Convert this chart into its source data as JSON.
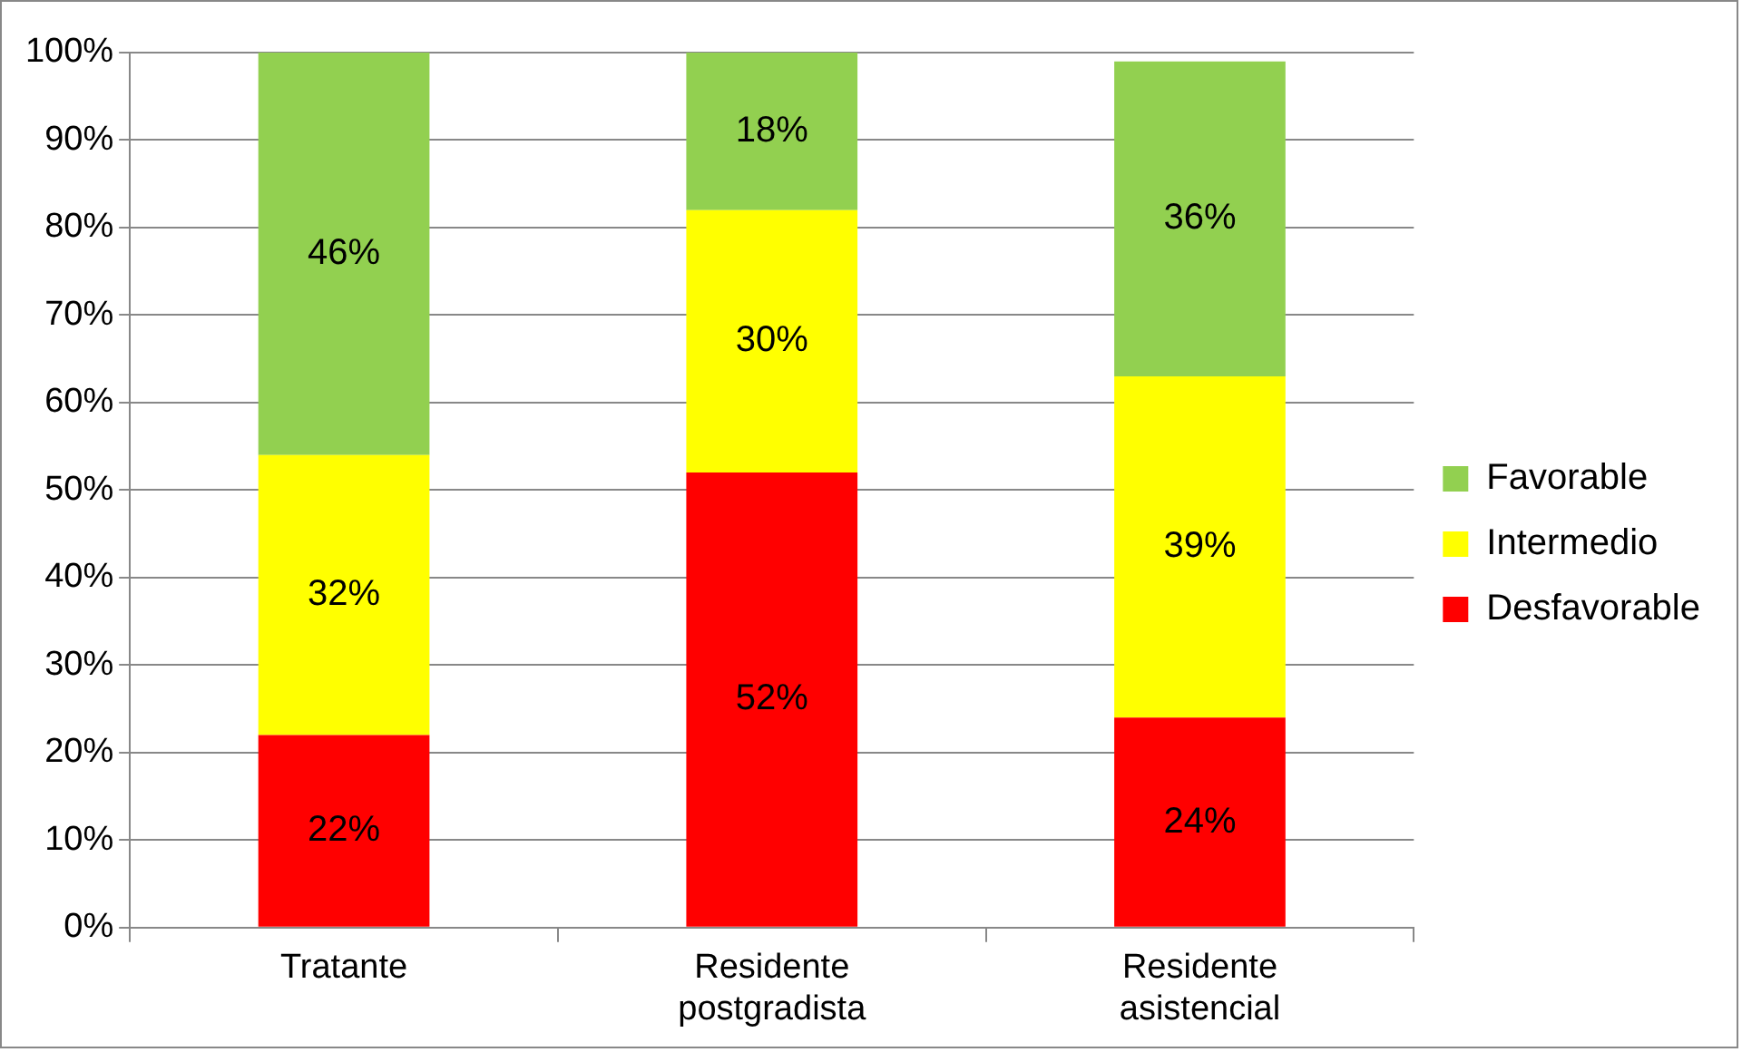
{
  "chart_data": {
    "type": "bar",
    "stacked": true,
    "categories": [
      "Tratante",
      "Residente postgradista",
      "Residente asistencial"
    ],
    "series": [
      {
        "name": "Desfavorable",
        "color": "#ff0000",
        "values": [
          22,
          52,
          24
        ],
        "value_labels": [
          "22%",
          "52%",
          "24%"
        ]
      },
      {
        "name": "Intermedio",
        "color": "#ffff00",
        "values": [
          32,
          30,
          39
        ],
        "value_labels": [
          "32%",
          "30%",
          "39%"
        ]
      },
      {
        "name": "Favorable",
        "color": "#92d050",
        "values": [
          46,
          18,
          36
        ],
        "value_labels": [
          "46%",
          "18%",
          "36%"
        ]
      }
    ],
    "ylim": [
      0,
      100
    ],
    "yticks": [
      {
        "value": 0,
        "label": "0%"
      },
      {
        "value": 10,
        "label": "10%"
      },
      {
        "value": 20,
        "label": "20%"
      },
      {
        "value": 30,
        "label": "30%"
      },
      {
        "value": 40,
        "label": "40%"
      },
      {
        "value": 50,
        "label": "50%"
      },
      {
        "value": 60,
        "label": "60%"
      },
      {
        "value": 70,
        "label": "70%"
      },
      {
        "value": 80,
        "label": "80%"
      },
      {
        "value": 90,
        "label": "90%"
      },
      {
        "value": 100,
        "label": "100%"
      }
    ],
    "grid": "y",
    "legend": "right"
  }
}
